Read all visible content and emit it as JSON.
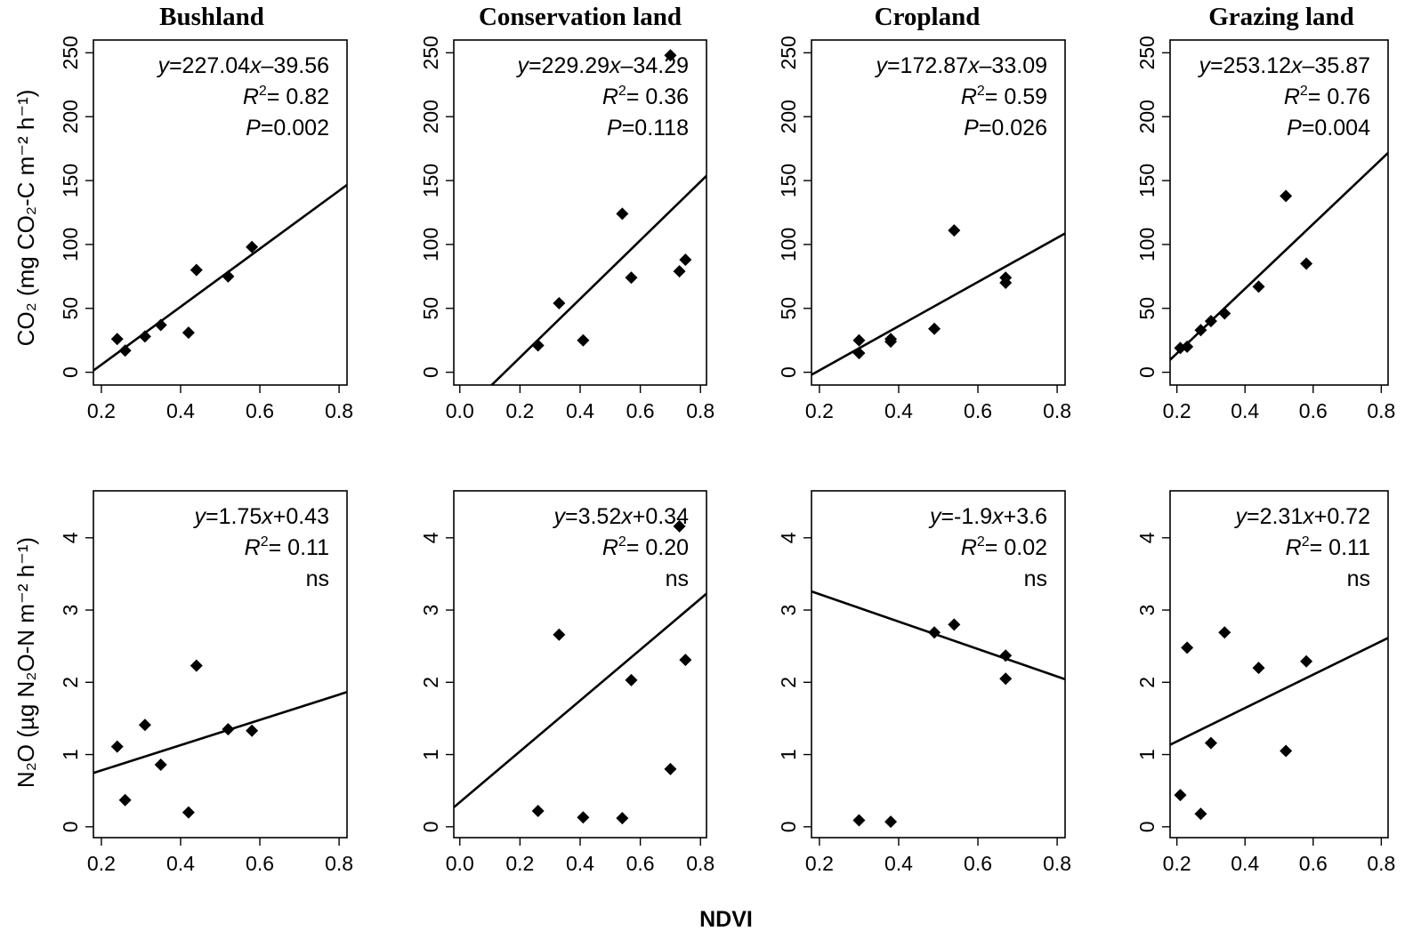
{
  "xlabel": "NDVI",
  "ylabels": {
    "co2": "CO₂ (mg CO₂-C m⁻² h⁻¹)",
    "n2o": "N₂O (µg N₂O-N m⁻² h⁻¹)"
  },
  "chart_data": [
    {
      "type": "scatter",
      "panel": "Bushland / CO2",
      "title": "Bushland",
      "xlim": [
        0.18,
        0.82
      ],
      "ylim": [
        -10,
        260
      ],
      "xticks": [
        "0.2",
        "0.4",
        "0.6",
        "0.8"
      ],
      "yticks": [
        "0",
        "50",
        "100",
        "150",
        "200",
        "250"
      ],
      "points": [
        [
          0.24,
          26
        ],
        [
          0.26,
          17
        ],
        [
          0.31,
          28
        ],
        [
          0.35,
          37
        ],
        [
          0.42,
          31
        ],
        [
          0.44,
          80
        ],
        [
          0.52,
          75
        ],
        [
          0.58,
          98
        ]
      ],
      "fit": {
        "slope": 227.04,
        "intercept": -39.56
      },
      "annotations": [
        "y=227.04x–39.56",
        "R2= 0.82",
        "P=0.002"
      ]
    },
    {
      "type": "scatter",
      "panel": "Conservation land / CO2",
      "title": "Conservation land",
      "xlim": [
        -0.02,
        0.82
      ],
      "ylim": [
        -10,
        260
      ],
      "xticks": [
        "0.0",
        "0.2",
        "0.4",
        "0.6",
        "0.8"
      ],
      "yticks": [
        "0",
        "50",
        "100",
        "150",
        "200",
        "250"
      ],
      "points": [
        [
          0.26,
          21
        ],
        [
          0.33,
          54
        ],
        [
          0.41,
          25
        ],
        [
          0.54,
          124
        ],
        [
          0.57,
          74
        ],
        [
          0.7,
          248
        ],
        [
          0.73,
          79
        ],
        [
          0.75,
          88
        ]
      ],
      "fit": {
        "slope": 229.29,
        "intercept": -34.29
      },
      "annotations": [
        "y=229.29x–34.29",
        "R2= 0.36",
        "P=0.118"
      ]
    },
    {
      "type": "scatter",
      "panel": "Cropland / CO2",
      "title": "Cropland",
      "xlim": [
        0.18,
        0.82
      ],
      "ylim": [
        -10,
        260
      ],
      "xticks": [
        "0.2",
        "0.4",
        "0.6",
        "0.8"
      ],
      "yticks": [
        "0",
        "50",
        "100",
        "150",
        "200",
        "250"
      ],
      "points": [
        [
          0.3,
          25
        ],
        [
          0.3,
          15
        ],
        [
          0.38,
          26
        ],
        [
          0.38,
          24
        ],
        [
          0.49,
          34
        ],
        [
          0.54,
          111
        ],
        [
          0.67,
          74
        ],
        [
          0.67,
          70
        ]
      ],
      "fit": {
        "slope": 172.87,
        "intercept": -33.09
      },
      "annotations": [
        "y=172.87x–33.09",
        "R2= 0.59",
        "P=0.026"
      ]
    },
    {
      "type": "scatter",
      "panel": "Grazing land / CO2",
      "title": "Grazing land",
      "xlim": [
        0.18,
        0.82
      ],
      "ylim": [
        -10,
        260
      ],
      "xticks": [
        "0.2",
        "0.4",
        "0.6",
        "0.8"
      ],
      "yticks": [
        "0",
        "50",
        "100",
        "150",
        "200",
        "250"
      ],
      "points": [
        [
          0.21,
          19
        ],
        [
          0.23,
          20
        ],
        [
          0.27,
          33
        ],
        [
          0.3,
          40
        ],
        [
          0.34,
          46
        ],
        [
          0.44,
          67
        ],
        [
          0.52,
          138
        ],
        [
          0.58,
          85
        ]
      ],
      "fit": {
        "slope": 253.12,
        "intercept": -35.87
      },
      "annotations": [
        "y=253.12x–35.87",
        "R2= 0.76",
        "P=0.004"
      ]
    },
    {
      "type": "scatter",
      "panel": "Bushland / N2O",
      "xlim": [
        0.18,
        0.82
      ],
      "ylim": [
        -0.15,
        4.65
      ],
      "xticks": [
        "0.2",
        "0.4",
        "0.6",
        "0.8"
      ],
      "yticks": [
        "0",
        "1",
        "2",
        "3",
        "4"
      ],
      "points": [
        [
          0.24,
          1.11
        ],
        [
          0.26,
          0.37
        ],
        [
          0.31,
          1.41
        ],
        [
          0.35,
          0.86
        ],
        [
          0.42,
          0.2
        ],
        [
          0.44,
          2.23
        ],
        [
          0.52,
          1.35
        ],
        [
          0.58,
          1.33
        ]
      ],
      "fit": {
        "slope": 1.75,
        "intercept": 0.43
      },
      "annotations": [
        "y=1.75x+0.43",
        "R2= 0.11",
        "ns"
      ]
    },
    {
      "type": "scatter",
      "panel": "Conservation land / N2O",
      "xlim": [
        -0.02,
        0.82
      ],
      "ylim": [
        -0.15,
        4.65
      ],
      "xticks": [
        "0.0",
        "0.2",
        "0.4",
        "0.6",
        "0.8"
      ],
      "yticks": [
        "0",
        "1",
        "2",
        "3",
        "4"
      ],
      "points": [
        [
          0.26,
          0.22
        ],
        [
          0.33,
          2.66
        ],
        [
          0.41,
          0.13
        ],
        [
          0.54,
          0.12
        ],
        [
          0.57,
          2.03
        ],
        [
          0.7,
          0.8
        ],
        [
          0.73,
          4.16
        ],
        [
          0.75,
          2.31
        ]
      ],
      "fit": {
        "slope": 3.52,
        "intercept": 0.34
      },
      "annotations": [
        "y=3.52x+0.34",
        "R2= 0.20",
        "ns"
      ]
    },
    {
      "type": "scatter",
      "panel": "Cropland / N2O",
      "xlim": [
        0.18,
        0.82
      ],
      "ylim": [
        -0.15,
        4.65
      ],
      "xticks": [
        "0.2",
        "0.4",
        "0.6",
        "0.8"
      ],
      "yticks": [
        "0",
        "1",
        "2",
        "3",
        "4"
      ],
      "points": [
        [
          0.3,
          0.09
        ],
        [
          0.38,
          0.07
        ],
        [
          0.49,
          2.69
        ],
        [
          0.54,
          2.8
        ],
        [
          0.67,
          2.37
        ],
        [
          0.67,
          2.05
        ]
      ],
      "fit": {
        "slope": -1.9,
        "intercept": 3.6
      },
      "annotations": [
        "y=-1.9x+3.6",
        "R2= 0.02",
        "ns"
      ]
    },
    {
      "type": "scatter",
      "panel": "Grazing land / N2O",
      "xlim": [
        0.18,
        0.82
      ],
      "ylim": [
        -0.15,
        4.65
      ],
      "xticks": [
        "0.2",
        "0.4",
        "0.6",
        "0.8"
      ],
      "yticks": [
        "0",
        "1",
        "2",
        "3",
        "4"
      ],
      "points": [
        [
          0.21,
          0.44
        ],
        [
          0.23,
          2.48
        ],
        [
          0.27,
          0.18
        ],
        [
          0.3,
          1.16
        ],
        [
          0.34,
          2.69
        ],
        [
          0.44,
          2.2
        ],
        [
          0.52,
          1.05
        ],
        [
          0.58,
          2.29
        ]
      ],
      "fit": {
        "slope": 2.31,
        "intercept": 0.72
      },
      "annotations": [
        "y=2.31x+0.72",
        "R2= 0.11",
        "ns"
      ]
    }
  ]
}
